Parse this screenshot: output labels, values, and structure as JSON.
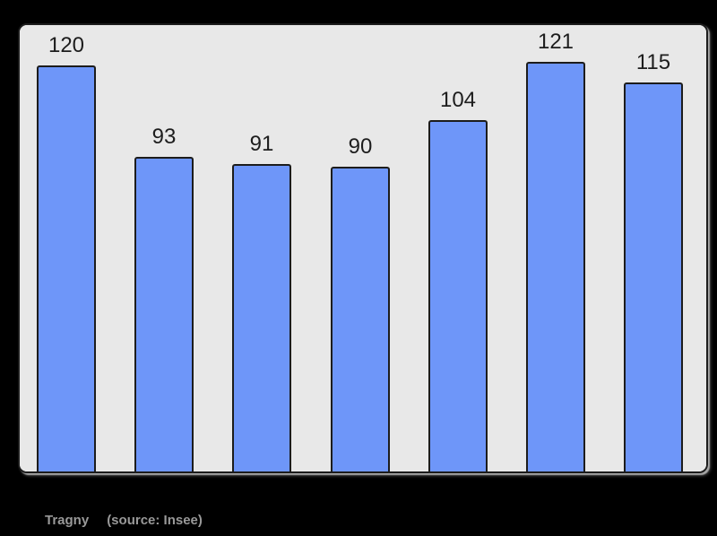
{
  "chart_data": {
    "type": "bar",
    "title": "",
    "values": [
      120,
      93,
      91,
      90,
      104,
      121,
      115
    ],
    "bar_labels": [
      "120",
      "93",
      "91",
      "90",
      "104",
      "121",
      "115"
    ],
    "ylim": [
      0,
      132
    ],
    "grid": false,
    "legend": false,
    "x_tick_labels_visible": false,
    "colors": {
      "bar_fill": "#6e96f9",
      "bar_border": "#1c1c1c",
      "plot_background": "#e8e8e8",
      "page_background": "#000000",
      "value_label": "#1d1d1d",
      "caption_text": "#999999"
    }
  },
  "caption": {
    "commune": "Tragny",
    "source": "(source: Insee)"
  }
}
